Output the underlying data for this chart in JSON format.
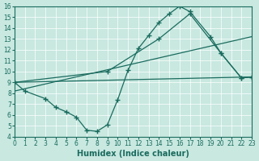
{
  "bg_color": "#c8e8e0",
  "line_color": "#1a6b5e",
  "grid_color": "#ffffff",
  "xlabel": "Humidex (Indice chaleur)",
  "ylim": [
    4,
    16
  ],
  "xlim": [
    0,
    23
  ],
  "yticks": [
    4,
    5,
    6,
    7,
    8,
    9,
    10,
    11,
    12,
    13,
    14,
    15,
    16
  ],
  "xticks": [
    0,
    1,
    2,
    3,
    4,
    5,
    6,
    7,
    8,
    9,
    10,
    11,
    12,
    13,
    14,
    15,
    16,
    17,
    18,
    19,
    20,
    21,
    22,
    23
  ],
  "line1_x": [
    0,
    1,
    3,
    4,
    5,
    6,
    7,
    8,
    9,
    10,
    11,
    12,
    13,
    14,
    15,
    16,
    17,
    19,
    20,
    22,
    23
  ],
  "line1_y": [
    9.0,
    8.2,
    7.5,
    6.7,
    6.3,
    5.8,
    4.6,
    4.5,
    5.1,
    7.4,
    10.1,
    12.1,
    13.3,
    14.5,
    15.3,
    16.0,
    15.5,
    13.2,
    11.7,
    9.4,
    9.5
  ],
  "line2_x": [
    0,
    9,
    14,
    17,
    20,
    22,
    23
  ],
  "line2_y": [
    9.0,
    10.0,
    13.0,
    15.3,
    11.7,
    9.4,
    9.5
  ],
  "line3_x": [
    0,
    23
  ],
  "line3_y": [
    9.0,
    9.5
  ],
  "line4_x": [
    0,
    23
  ],
  "line4_y": [
    8.2,
    13.2
  ],
  "marker": "+",
  "markersize": 4.0,
  "linewidth": 0.9,
  "xlabel_fontsize": 7,
  "tick_fontsize": 5.5
}
